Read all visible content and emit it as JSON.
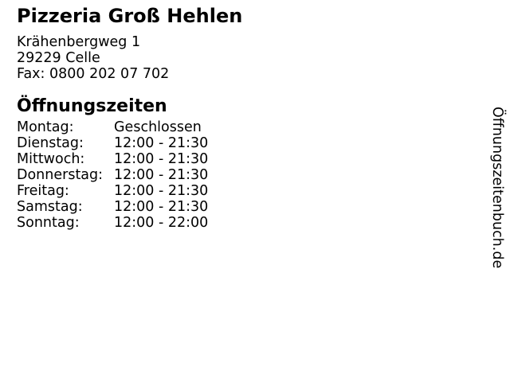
{
  "business": {
    "name": "Pizzeria Groß Hehlen",
    "address_line1": "Krähenbergweg 1",
    "address_line2": "29229 Celle",
    "fax_line": "Fax: 0800 202 07 702"
  },
  "hours": {
    "heading": "Öffnungszeiten",
    "rows": [
      {
        "day": "Montag:",
        "time": "Geschlossen"
      },
      {
        "day": "Dienstag:",
        "time": "12:00 - 21:30"
      },
      {
        "day": "Mittwoch:",
        "time": "12:00 - 21:30"
      },
      {
        "day": "Donnerstag:",
        "time": "12:00 - 21:30"
      },
      {
        "day": "Freitag:",
        "time": "12:00 - 21:30"
      },
      {
        "day": "Samstag:",
        "time": "12:00 - 21:30"
      },
      {
        "day": "Sonntag:",
        "time": "12:00 - 22:00"
      }
    ]
  },
  "branding": {
    "watermark": "Öffnungszeitenbuch.de"
  },
  "colors": {
    "background": "#ffffff",
    "text": "#000000"
  }
}
